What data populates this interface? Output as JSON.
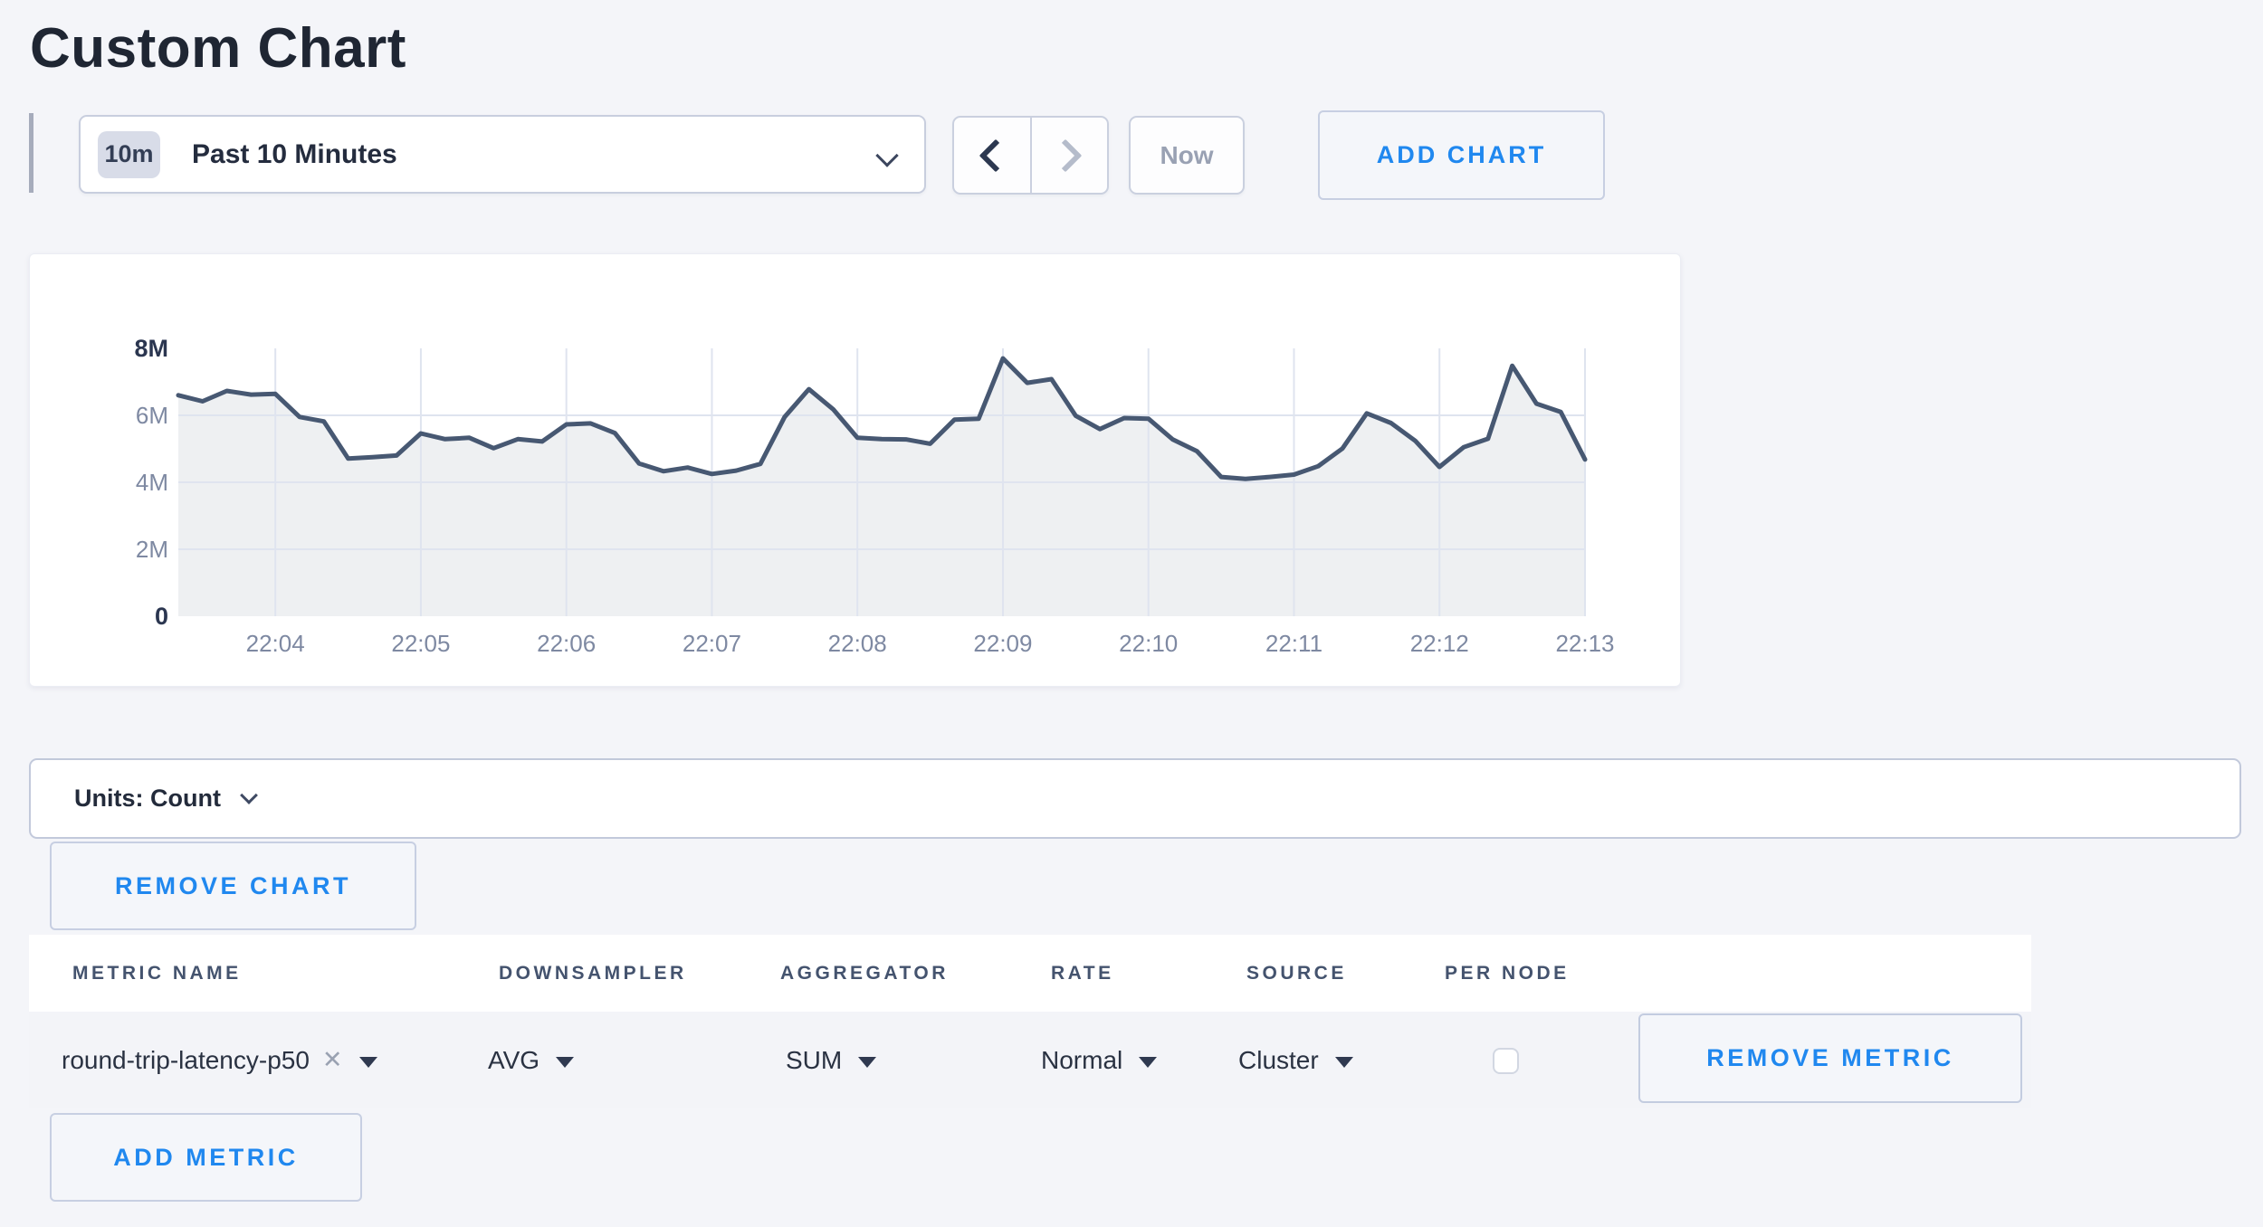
{
  "page_title": "Custom Chart",
  "toolbar": {
    "time_badge": "10m",
    "time_range_label": "Past 10 Minutes",
    "now_label": "Now",
    "add_chart_label": "ADD CHART"
  },
  "chart_data": {
    "type": "area",
    "title": "",
    "ylabel": "",
    "xlabel": "",
    "unit": "count",
    "ylim_millions": [
      0,
      8
    ],
    "y_tick_labels": [
      "8M",
      "6M",
      "4M",
      "2M",
      "0"
    ],
    "y_tick_values_millions": [
      8,
      6,
      4,
      2,
      0
    ],
    "x_tick_labels": [
      "22:04",
      "22:05",
      "22:06",
      "22:07",
      "22:08",
      "22:09",
      "22:10",
      "22:11",
      "22:12",
      "22:13"
    ],
    "points_per_minute": 6,
    "first_tick_point_index": 4,
    "grid": true,
    "legend": "none",
    "line_color": "#475872",
    "fill_color": "rgba(71,88,114,0.09)",
    "grid_color": "#dfe4ef",
    "values_millions": [
      6.6,
      6.42,
      6.73,
      6.62,
      6.64,
      5.95,
      5.82,
      4.71,
      4.75,
      4.8,
      5.46,
      5.29,
      5.33,
      5.02,
      5.29,
      5.22,
      5.73,
      5.76,
      5.47,
      4.56,
      4.33,
      4.44,
      4.25,
      4.35,
      4.55,
      5.95,
      6.78,
      6.18,
      5.33,
      5.29,
      5.28,
      5.15,
      5.87,
      5.9,
      7.7,
      6.97,
      7.08,
      5.99,
      5.59,
      5.92,
      5.9,
      5.28,
      4.93,
      4.16,
      4.1,
      4.16,
      4.23,
      4.48,
      5.01,
      6.06,
      5.77,
      5.24,
      4.46,
      5.05,
      5.3,
      7.48,
      6.35,
      6.1,
      4.68
    ]
  },
  "units_bar": {
    "label": "Units: Count"
  },
  "chart_actions": {
    "remove_chart_label": "REMOVE CHART"
  },
  "metrics_table": {
    "columns": [
      "METRIC NAME",
      "DOWNSAMPLER",
      "AGGREGATOR",
      "RATE",
      "SOURCE",
      "PER NODE"
    ],
    "row": {
      "metric_name": "round-trip-latency-p50",
      "clear_icon": "✕",
      "downsampler": "AVG",
      "aggregator": "SUM",
      "rate": "Normal",
      "source": "Cluster",
      "per_node_checked": false,
      "remove_metric_label": "REMOVE METRIC"
    },
    "add_metric_label": "ADD METRIC"
  },
  "colors": {
    "page_background": "#f4f5f9",
    "accent_blue": "#2088ef",
    "dark_text": "#232a39",
    "muted_text": "#7e89a2",
    "header_text": "#44536e",
    "line": "#475872"
  }
}
